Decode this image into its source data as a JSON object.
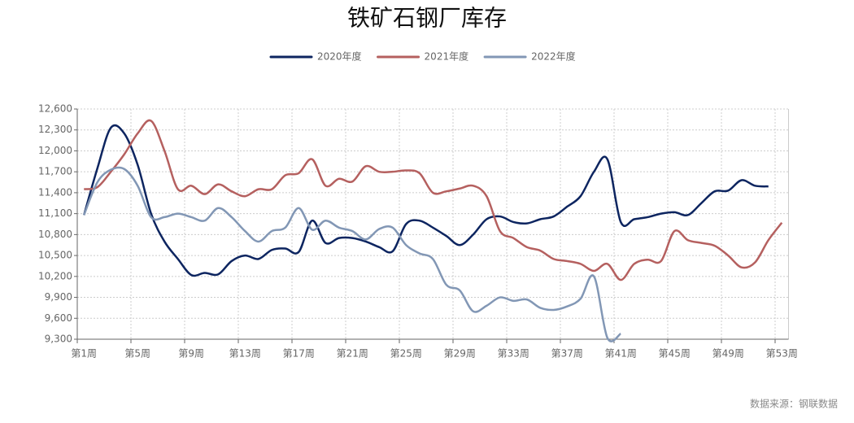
{
  "chart_data": {
    "type": "line",
    "title": "铁矿石钢厂库存",
    "source": "数据来源：钢联数据",
    "categories": [
      "第1周",
      null,
      null,
      null,
      "第5周",
      null,
      null,
      null,
      "第9周",
      null,
      null,
      null,
      "第13周",
      null,
      null,
      null,
      "第17周",
      null,
      null,
      null,
      "第21周",
      null,
      null,
      null,
      "第25周",
      null,
      null,
      null,
      "第29周",
      null,
      null,
      null,
      "第33周",
      null,
      null,
      null,
      "第37周",
      null,
      null,
      null,
      "第41周",
      null,
      null,
      null,
      "第45周",
      null,
      null,
      null,
      "第49周",
      null,
      null,
      null,
      "第53周"
    ],
    "series": [
      {
        "name": "2020年度",
        "color": "#0d2560",
        "values": [
          11080,
          11750,
          12330,
          12250,
          11800,
          11100,
          10700,
          10450,
          10220,
          10250,
          10230,
          10420,
          10500,
          10450,
          10580,
          10600,
          10550,
          11000,
          10680,
          10750,
          10750,
          10700,
          10620,
          10560,
          10950,
          11000,
          10900,
          10780,
          10650,
          10800,
          11020,
          11060,
          10980,
          10960,
          11020,
          11060,
          11200,
          11350,
          11700,
          11880,
          10980,
          11020,
          11050,
          11100,
          11120,
          11080,
          11250,
          11420,
          11430,
          11580,
          11500,
          11490,
          null
        ]
      },
      {
        "name": "2021年度",
        "color": "#b5605f",
        "values": [
          11450,
          11480,
          11700,
          11950,
          12250,
          12430,
          12000,
          11450,
          11500,
          11380,
          11520,
          11420,
          11350,
          11450,
          11450,
          11650,
          11680,
          11880,
          11500,
          11600,
          11560,
          11780,
          11700,
          11700,
          11720,
          11680,
          11400,
          11420,
          11460,
          11500,
          11350,
          10850,
          10750,
          10620,
          10570,
          10450,
          10420,
          10380,
          10280,
          10380,
          10150,
          10380,
          10440,
          10420,
          10850,
          10720,
          10680,
          10640,
          10500,
          10330,
          10400,
          10720,
          10970
        ]
      },
      {
        "name": "2022年度",
        "color": "#8297b5",
        "values": [
          11080,
          11550,
          11730,
          11740,
          11500,
          11050,
          11050,
          11100,
          11050,
          11000,
          11180,
          11050,
          10850,
          10700,
          10850,
          10900,
          11180,
          10870,
          11000,
          10900,
          10850,
          10730,
          10880,
          10900,
          10650,
          10530,
          10450,
          10080,
          10000,
          9700,
          9780,
          9900,
          9850,
          9870,
          9750,
          9720,
          9770,
          9880,
          10200,
          9320,
          9380,
          null,
          null,
          null,
          null,
          null,
          null,
          null,
          null,
          null,
          null,
          null,
          null
        ]
      }
    ],
    "ylim": [
      9300,
      12600
    ],
    "yticks": [
      {
        "value": 9300,
        "label": "9,300"
      },
      {
        "value": 9600,
        "label": "9,600"
      },
      {
        "value": 9900,
        "label": "9,900"
      },
      {
        "value": 10200,
        "label": "10,200"
      },
      {
        "value": 10500,
        "label": "10,500"
      },
      {
        "value": 10800,
        "label": "10,800"
      },
      {
        "value": 11100,
        "label": "11,100"
      },
      {
        "value": 11400,
        "label": "11,400"
      },
      {
        "value": 11700,
        "label": "11,700"
      },
      {
        "value": 12000,
        "label": "12,000"
      },
      {
        "value": 12300,
        "label": "12,300"
      },
      {
        "value": 12600,
        "label": "12,600"
      }
    ],
    "grid": true,
    "legend": "top"
  }
}
